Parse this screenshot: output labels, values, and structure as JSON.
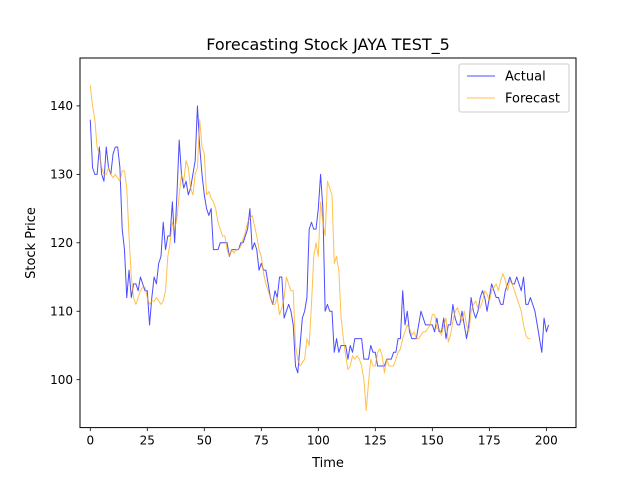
{
  "chart_data": {
    "type": "line",
    "title": "Forecasting Stock JAYA TEST_5",
    "xlabel": "Time",
    "ylabel": "Stock Price",
    "xlim": [
      -4.5,
      213
    ],
    "ylim": [
      93,
      147
    ],
    "xticks": [
      0,
      25,
      50,
      75,
      100,
      125,
      150,
      175,
      200
    ],
    "yticks": [
      100,
      110,
      120,
      130,
      140
    ],
    "grid": false,
    "legend_position": "top-right",
    "series": [
      {
        "name": "Actual",
        "color": "#0000ff",
        "values": [
          138,
          131,
          130,
          130,
          134,
          130,
          129,
          134,
          131,
          130,
          133,
          134,
          134,
          131,
          122,
          119,
          112,
          116,
          112,
          114,
          114,
          113,
          115,
          114,
          113,
          113,
          108,
          112,
          115,
          114,
          117,
          118,
          123,
          119,
          121,
          121,
          126,
          120,
          127,
          135,
          130,
          128,
          129,
          127,
          128,
          130,
          132,
          140,
          134,
          130,
          127,
          125,
          124,
          125,
          119,
          119,
          119,
          120,
          120,
          120,
          120,
          118,
          119,
          119,
          119,
          119,
          120,
          120,
          121,
          122,
          125,
          119,
          120,
          119,
          116,
          117,
          116,
          116,
          114,
          112,
          111,
          113,
          112,
          115,
          115,
          109,
          110,
          111,
          110,
          108,
          102,
          101,
          105,
          109,
          110,
          112,
          122,
          123,
          122,
          122,
          125,
          130,
          125,
          110,
          111,
          110,
          110,
          104,
          106,
          104,
          105,
          105,
          105,
          103,
          105,
          104,
          106,
          106,
          106,
          106,
          103,
          103,
          103,
          105,
          104,
          104,
          102,
          102,
          102,
          102,
          103,
          103,
          103,
          104,
          104,
          106,
          106,
          113,
          108,
          110,
          107,
          106,
          106,
          106,
          108,
          110,
          109,
          108,
          108,
          108,
          108,
          107,
          109,
          107,
          107,
          109,
          106,
          108,
          108,
          111,
          109,
          108,
          108,
          110,
          108,
          106,
          108,
          112,
          110,
          109,
          110,
          112,
          113,
          112,
          110,
          112,
          114,
          113,
          112,
          112,
          111,
          111,
          113,
          114,
          115,
          114,
          114,
          115,
          114,
          113,
          115,
          111,
          111,
          112,
          111,
          110,
          108,
          106,
          104,
          109,
          107,
          108
        ]
      },
      {
        "name": "Forecast",
        "color": "#ffa500",
        "values": [
          143,
          140,
          138,
          134,
          133,
          131,
          130,
          130,
          131,
          130,
          129.5,
          130,
          129.5,
          129,
          130.5,
          130.5,
          128,
          121,
          115,
          112,
          111,
          112,
          113,
          113.5,
          113.5,
          112,
          111,
          111.5,
          111.5,
          112,
          111.5,
          111,
          111.5,
          113,
          118,
          120,
          123,
          122,
          123.5,
          127,
          130,
          129,
          132,
          131,
          128,
          127,
          130,
          131,
          138,
          134,
          133,
          127,
          127.5,
          126.5,
          126,
          125,
          123,
          122,
          121,
          121,
          119,
          118,
          119,
          118.5,
          119,
          119,
          119.5,
          120.5,
          121.5,
          123,
          123.5,
          124,
          122.5,
          121,
          119,
          118,
          115.5,
          114,
          113,
          112,
          111,
          111,
          112,
          109.5,
          110.5,
          112,
          115,
          114,
          113,
          113,
          105,
          103,
          102,
          102.5,
          103,
          106,
          105,
          111,
          118,
          120,
          118,
          126,
          123,
          121,
          129,
          128,
          127,
          117,
          118,
          116,
          109,
          106,
          103.5,
          101.5,
          102,
          103.5,
          103,
          103.5,
          103,
          102,
          100,
          95.5,
          99.5,
          103,
          102,
          102,
          104,
          104.5,
          103.5,
          101,
          103,
          102,
          102,
          102,
          103,
          104,
          104.5,
          106,
          107,
          108,
          107.5,
          106.5,
          107,
          106,
          106,
          106.5,
          107,
          107,
          107.5,
          108,
          109.5,
          109.5,
          107.5,
          107.5,
          106.5,
          108,
          109,
          105.5,
          106.5,
          108.5,
          110,
          110.5,
          109.5,
          108.5,
          110,
          108,
          107,
          110,
          111,
          111.5,
          110.5,
          110.5,
          111.5,
          113,
          112.5,
          111.5,
          113,
          113.5,
          114,
          113,
          114.5,
          115.5,
          114.5,
          113,
          114.5,
          114,
          113,
          112,
          111,
          110,
          108,
          106.5,
          106,
          106
        ]
      }
    ]
  }
}
